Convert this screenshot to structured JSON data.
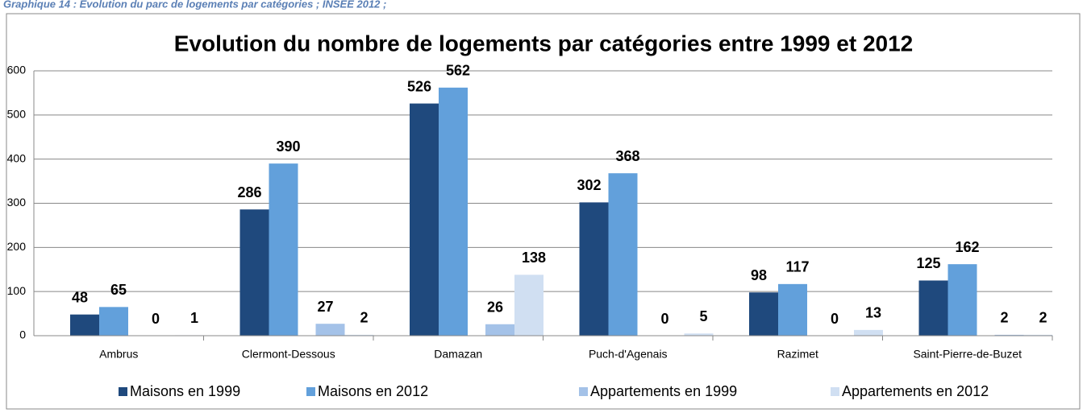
{
  "chart_data": {
    "type": "bar",
    "caption": "Graphique 14 : Evolution du parc de logements par catégories ; INSEE 2012 ;",
    "title": "Evolution du nombre de logements par catégories entre 1999 et 2012",
    "categories": [
      "Ambrus",
      "Clermont-Dessous",
      "Damazan",
      "Puch-d'Agenais",
      "Razimet",
      "Saint-Pierre-de-Buzet"
    ],
    "series": [
      {
        "name": "Maisons en 1999",
        "color": "#1f497d",
        "values": [
          48,
          286,
          526,
          302,
          98,
          125
        ]
      },
      {
        "name": "Maisons en 2012",
        "color": "#62a0db",
        "values": [
          65,
          390,
          562,
          368,
          117,
          162
        ]
      },
      {
        "name": "Appartements en 1999",
        "color": "#a4c2e8",
        "values": [
          0,
          27,
          26,
          0,
          0,
          2
        ]
      },
      {
        "name": "Appartements en 2012",
        "color": "#d0dff2",
        "values": [
          1,
          2,
          138,
          5,
          13,
          2
        ]
      }
    ],
    "ylim": [
      0,
      600
    ],
    "yticks": [
      0,
      100,
      200,
      300,
      400,
      500,
      600
    ],
    "grid": true,
    "legend": "bottom"
  }
}
